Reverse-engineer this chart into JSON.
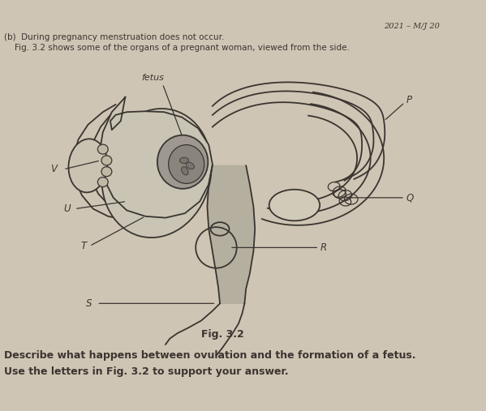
{
  "background_color": "#cfc5b4",
  "title_text": "2021 – M/J 20",
  "header_line1": "(b)  During pregnancy menstruation does not occur.",
  "header_line2": "    Fig. 3.2 shows some of the organs of a pregnant woman, viewed from the side.",
  "fetus_label": "fetus",
  "fig_label": "Fig. 3.2",
  "footer_line1": "Describe what happens between ovulation and the formation of a fetus.",
  "footer_line2": "Use the letters in Fig. 3.2 to support your answer.",
  "line_color": "#3a3530",
  "fill_uterus": "#c0b8a8",
  "fill_ovary": "#cac3b2",
  "fill_tube": "#bdb6a5",
  "fill_fetus": "#a09890",
  "fill_vagina": "#b8b0a0"
}
